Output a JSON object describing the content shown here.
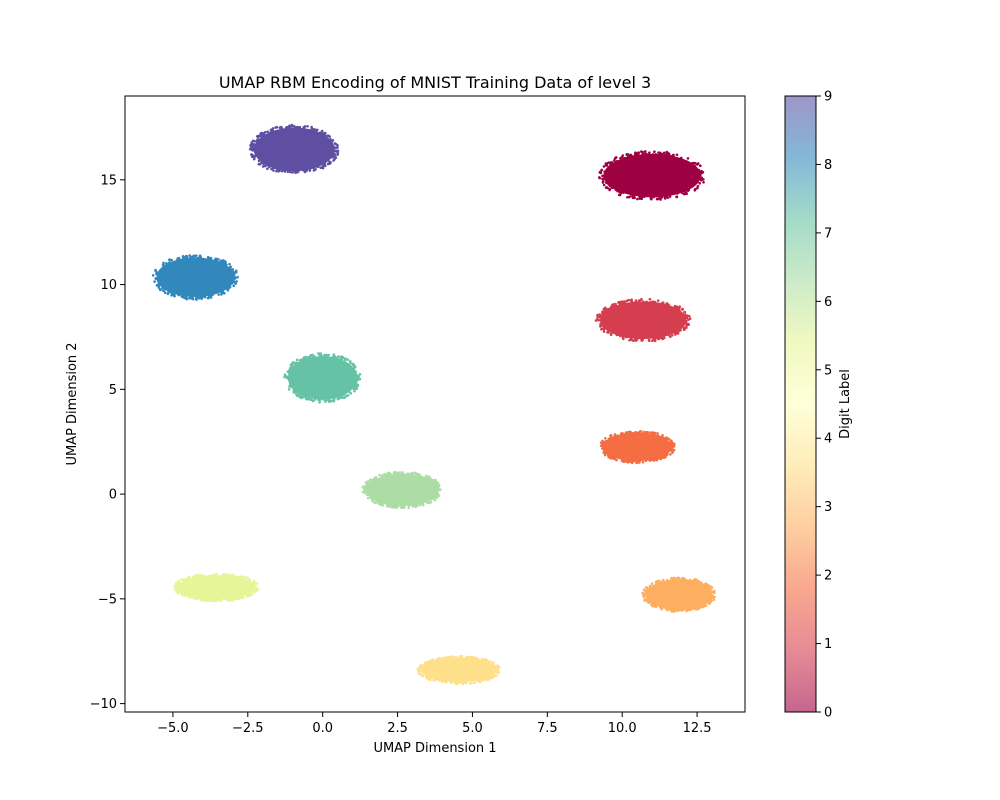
{
  "chart_data": {
    "type": "scatter",
    "title": "UMAP RBM Encoding of MNIST Training Data of level 3",
    "xlabel": "UMAP Dimension 1",
    "ylabel": "UMAP Dimension 2",
    "xlim": [
      -6.6,
      14.1
    ],
    "ylim": [
      -10.4,
      19.0
    ],
    "xticks": [
      -5.0,
      -2.5,
      0.0,
      2.5,
      5.0,
      7.5,
      10.0,
      12.5
    ],
    "xtick_labels": [
      "−5.0",
      "−2.5",
      "0.0",
      "2.5",
      "5.0",
      "7.5",
      "10.0",
      "12.5"
    ],
    "yticks": [
      -10,
      -5,
      0,
      5,
      10,
      15
    ],
    "ytick_labels": [
      "−10",
      "−5",
      "0",
      "5",
      "10",
      "15"
    ],
    "grid": false,
    "clusters": [
      {
        "label": 0,
        "cx": 11.0,
        "cy": 15.2,
        "rx": 1.75,
        "ry": 1.15,
        "color": "#9e0142"
      },
      {
        "label": 1,
        "cx": 10.7,
        "cy": 8.3,
        "rx": 1.55,
        "ry": 1.0,
        "color": "#d53e4f"
      },
      {
        "label": 2,
        "cx": 10.5,
        "cy": 2.25,
        "rx": 1.25,
        "ry": 0.75,
        "color": "#f46d43"
      },
      {
        "label": 3,
        "cx": 11.9,
        "cy": -4.8,
        "rx": 1.2,
        "ry": 0.8,
        "color": "#fdae61"
      },
      {
        "label": 4,
        "cx": 4.55,
        "cy": -8.4,
        "rx": 1.35,
        "ry": 0.65,
        "color": "#fee08b"
      },
      {
        "label": 5,
        "cx": -3.55,
        "cy": -4.45,
        "rx": 1.4,
        "ry": 0.65,
        "color": "#e6f598"
      },
      {
        "label": 6,
        "cx": 2.65,
        "cy": 0.2,
        "rx": 1.3,
        "ry": 0.85,
        "color": "#abdda4"
      },
      {
        "label": 7,
        "cx": 0.0,
        "cy": 5.55,
        "rx": 1.25,
        "ry": 1.15,
        "color": "#66c2a5"
      },
      {
        "label": 8,
        "cx": -4.25,
        "cy": 10.35,
        "rx": 1.4,
        "ry": 1.05,
        "color": "#3288bd"
      },
      {
        "label": 9,
        "cx": -0.95,
        "cy": 16.45,
        "rx": 1.45,
        "ry": 1.15,
        "color": "#5e4fa2"
      }
    ],
    "colorbar": {
      "label": "Digit Label",
      "range": [
        0,
        9
      ],
      "ticks": [
        "0",
        "1",
        "2",
        "3",
        "4",
        "5",
        "6",
        "7",
        "8",
        "9"
      ],
      "alpha": 0.6,
      "colors": [
        "#9e0142",
        "#d53e4f",
        "#f46d43",
        "#fdae61",
        "#fee08b",
        "#ffffbf",
        "#e6f598",
        "#abdda4",
        "#66c2a5",
        "#3288bd",
        "#5e4fa2"
      ]
    }
  }
}
